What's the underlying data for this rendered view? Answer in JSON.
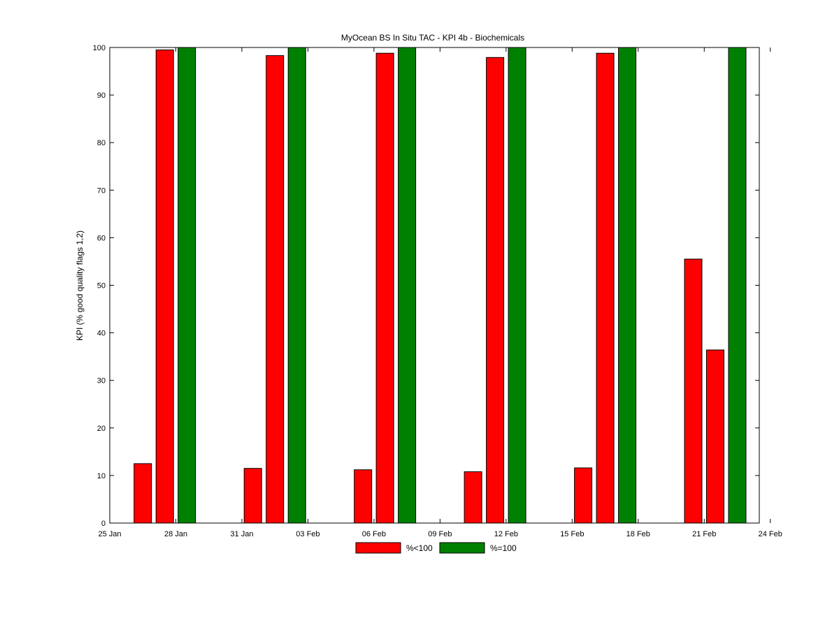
{
  "chart_data": {
    "type": "bar",
    "title": "MyOcean  BS In Situ TAC - KPI 4b - Biochemicals",
    "xlabel": "",
    "ylabel": "KPI (% good quality flags 1,2)",
    "ylim": [
      0,
      100
    ],
    "yticks": [
      0,
      10,
      20,
      30,
      40,
      50,
      60,
      70,
      80,
      90,
      100
    ],
    "xticks": [
      "25 Jan",
      "28 Jan",
      "31 Jan",
      "03 Feb",
      "06 Feb",
      "09 Feb",
      "12 Feb",
      "15 Feb",
      "18 Feb",
      "21 Feb",
      "24 Feb"
    ],
    "x_axis_start": "25 Jan",
    "x_axis_days": 31,
    "grid": false,
    "legend": {
      "position": "bottom-center",
      "entries": [
        {
          "label": "%<100",
          "color": "#ff0000"
        },
        {
          "label": "%=100",
          "color": "#008000"
        }
      ]
    },
    "bars": [
      {
        "date": "26.5 Jan",
        "day_offset": 1.5,
        "value": 12.5,
        "series": "%<100"
      },
      {
        "date": "27.5 Jan",
        "day_offset": 2.5,
        "value": 99.5,
        "series": "%<100"
      },
      {
        "date": "28.5 Jan",
        "day_offset": 3.5,
        "value": 100,
        "series": "%=100"
      },
      {
        "date": "01.5 Feb",
        "day_offset": 6.5,
        "value": 11.5,
        "series": "%<100"
      },
      {
        "date": "02.5 Feb",
        "day_offset": 7.5,
        "value": 98.3,
        "series": "%<100"
      },
      {
        "date": "03.5 Feb",
        "day_offset": 8.5,
        "value": 100,
        "series": "%=100"
      },
      {
        "date": "06.5 Feb",
        "day_offset": 11.5,
        "value": 11.2,
        "series": "%<100"
      },
      {
        "date": "07.5 Feb",
        "day_offset": 12.5,
        "value": 98.8,
        "series": "%<100"
      },
      {
        "date": "08.5 Feb",
        "day_offset": 13.5,
        "value": 100,
        "series": "%=100"
      },
      {
        "date": "11.5 Feb",
        "day_offset": 16.5,
        "value": 10.8,
        "series": "%<100"
      },
      {
        "date": "12.5 Feb",
        "day_offset": 17.5,
        "value": 97.9,
        "series": "%<100"
      },
      {
        "date": "13.5 Feb",
        "day_offset": 18.5,
        "value": 100,
        "series": "%=100"
      },
      {
        "date": "16.5 Feb",
        "day_offset": 21.5,
        "value": 11.6,
        "series": "%<100"
      },
      {
        "date": "17.5 Feb",
        "day_offset": 22.5,
        "value": 98.8,
        "series": "%<100"
      },
      {
        "date": "18.5 Feb",
        "day_offset": 23.5,
        "value": 100,
        "series": "%=100"
      },
      {
        "date": "21.5 Feb",
        "day_offset": 26.5,
        "value": 55.5,
        "series": "%<100"
      },
      {
        "date": "22.5 Feb",
        "day_offset": 27.5,
        "value": 36.4,
        "series": "%<100"
      },
      {
        "date": "23.5 Feb",
        "day_offset": 28.5,
        "value": 100,
        "series": "%=100"
      }
    ]
  }
}
